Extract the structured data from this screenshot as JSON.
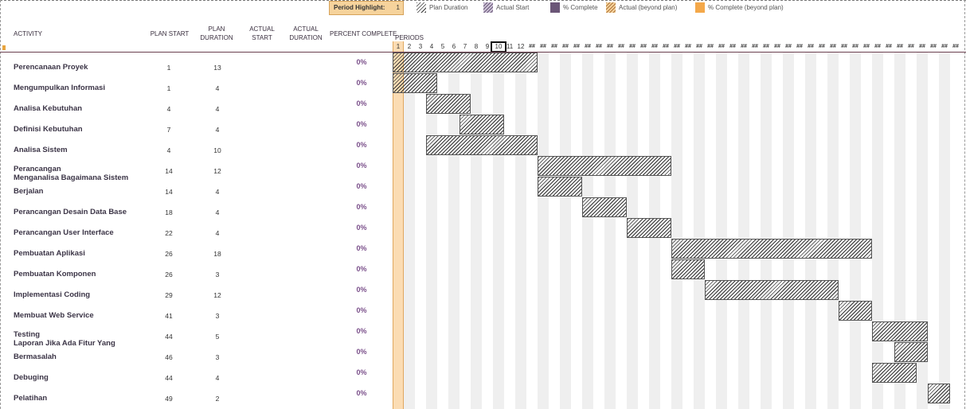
{
  "period_highlight": {
    "label": "Period Highlight:",
    "value": "1"
  },
  "legend": [
    {
      "name": "plan-duration",
      "label": "Plan Duration",
      "style": "hatch"
    },
    {
      "name": "actual-start",
      "label": "Actual Start",
      "style": "hatch-purple"
    },
    {
      "name": "percent-complete",
      "label": "% Complete",
      "style": "solid-purple"
    },
    {
      "name": "actual-beyond-plan",
      "label": "Actual (beyond plan)",
      "style": "hatch-orange"
    },
    {
      "name": "percent-complete-beyond-plan",
      "label": "% Complete (beyond plan)",
      "style": "solid-orange"
    }
  ],
  "headers": {
    "activity": "ACTIVITY",
    "plan_start": "PLAN START",
    "plan_duration": [
      "PLAN",
      "DURATION"
    ],
    "actual_start": [
      "ACTUAL",
      "START"
    ],
    "actual_duration": [
      "ACTUAL",
      "DURATION"
    ],
    "percent_complete": "PERCENT COMPLETE",
    "periods": "PERIODS"
  },
  "period_labels": [
    "1",
    "2",
    "3",
    "4",
    "5",
    "6",
    "7",
    "8",
    "9",
    "10",
    "11",
    "12"
  ],
  "overflow_label": "##",
  "highlighted_period": 1,
  "current_period": 10,
  "activities": [
    {
      "lines": [
        "Perencanaan Proyek"
      ],
      "plan_start": 1,
      "plan_duration": 13,
      "percent": "0%"
    },
    {
      "lines": [
        "Mengumpulkan Informasi"
      ],
      "plan_start": 1,
      "plan_duration": 4,
      "percent": "0%"
    },
    {
      "lines": [
        "Analisa Kebutuhan"
      ],
      "plan_start": 4,
      "plan_duration": 4,
      "percent": "0%"
    },
    {
      "lines": [
        "Definisi Kebutuhan"
      ],
      "plan_start": 7,
      "plan_duration": 4,
      "percent": "0%"
    },
    {
      "lines": [
        "Analisa Sistem"
      ],
      "plan_start": 4,
      "plan_duration": 10,
      "percent": "0%"
    },
    {
      "lines": [
        "Perancangan",
        "Menganalisa Bagaimana Sistem"
      ],
      "plan_start": 14,
      "plan_duration": 12,
      "percent": "0%"
    },
    {
      "lines": [
        "Berjalan"
      ],
      "plan_start": 14,
      "plan_duration": 4,
      "percent": "0%"
    },
    {
      "lines": [
        "Perancangan Desain Data Base"
      ],
      "plan_start": 18,
      "plan_duration": 4,
      "percent": "0%"
    },
    {
      "lines": [
        "Perancangan User Interface"
      ],
      "plan_start": 22,
      "plan_duration": 4,
      "percent": "0%"
    },
    {
      "lines": [
        "Pembuatan Aplikasi"
      ],
      "plan_start": 26,
      "plan_duration": 18,
      "percent": "0%"
    },
    {
      "lines": [
        "Pembuatan Komponen"
      ],
      "plan_start": 26,
      "plan_duration": 3,
      "percent": "0%"
    },
    {
      "lines": [
        "Implementasi Coding"
      ],
      "plan_start": 29,
      "plan_duration": 12,
      "percent": "0%"
    },
    {
      "lines": [
        "Membuat Web Service"
      ],
      "plan_start": 41,
      "plan_duration": 3,
      "percent": "0%"
    },
    {
      "lines": [
        "Testing",
        "Laporan Jika Ada Fitur Yang"
      ],
      "plan_start": 44,
      "plan_duration": 5,
      "percent": "0%"
    },
    {
      "lines": [
        "Bermasalah"
      ],
      "plan_start": 46,
      "plan_duration": 3,
      "percent": "0%"
    },
    {
      "lines": [
        "Debuging"
      ],
      "plan_start": 44,
      "plan_duration": 4,
      "percent": "0%"
    },
    {
      "lines": [
        "Pelatihan"
      ],
      "plan_start": 49,
      "plan_duration": 2,
      "percent": "0%"
    }
  ]
}
